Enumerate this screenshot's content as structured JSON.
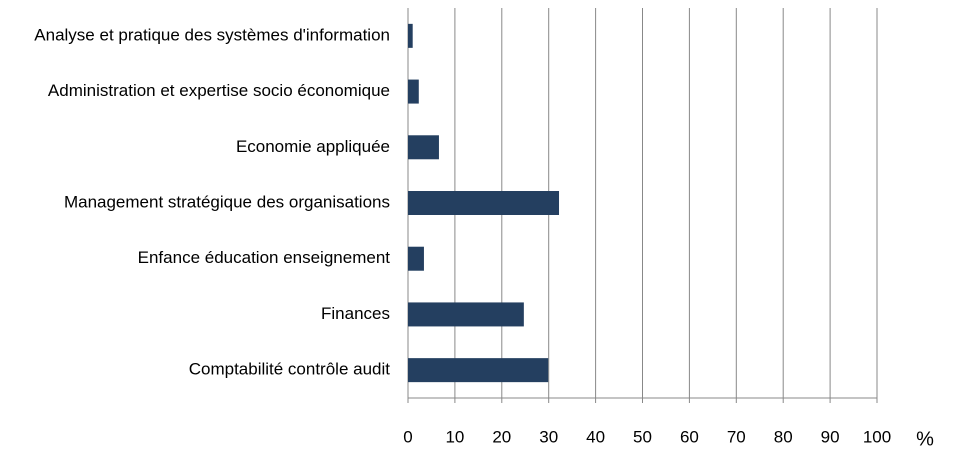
{
  "chart_data": {
    "type": "barh",
    "categories": [
      "Analyse et pratique des systèmes d'information",
      "Administration et expertise socio économique",
      "Economie appliquée",
      "Management stratégique des organisations",
      "Enfance éducation enseignement",
      "Finances",
      "Comptabilité contrôle audit"
    ],
    "values": [
      1.0,
      2.3,
      6.6,
      32.2,
      3.4,
      24.7,
      29.9
    ],
    "color": "#243f60",
    "x_label": "%",
    "xlim": [
      0,
      100
    ],
    "xticks": [
      0,
      10,
      20,
      30,
      40,
      50,
      60,
      70,
      80,
      90,
      100
    ],
    "grid": true
  }
}
